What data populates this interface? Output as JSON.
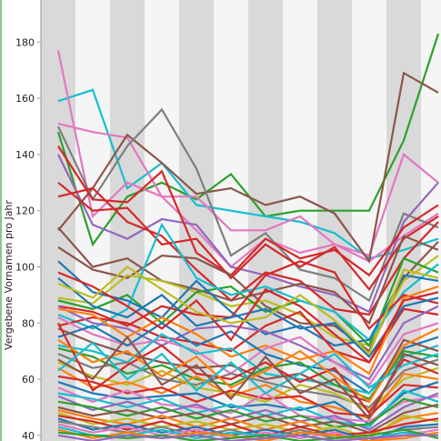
{
  "chart_data": {
    "type": "line",
    "title": "",
    "xlabel": "",
    "ylabel": "Vergebene Vornamen pro Jahr",
    "ylim": [
      38,
      195
    ],
    "y_ticks": [
      40,
      60,
      80,
      100,
      120,
      140,
      160,
      180
    ],
    "x": [
      0,
      1,
      2,
      3,
      4,
      5,
      6,
      7,
      8,
      9,
      10,
      11
    ],
    "grid": false,
    "legend": "none",
    "colors": {
      "stripe_dark": "#d9d9d9",
      "stripe_light": "#f5f5f5",
      "left_edge": "#8cc68c"
    },
    "series": [
      {
        "color": "#2ca02c",
        "values": [
          148,
          108,
          125,
          130,
          124,
          133,
          118,
          120,
          120,
          120,
          145,
          183
        ]
      },
      {
        "color": "#17becf",
        "values": [
          159,
          163,
          128,
          137,
          122,
          120,
          118,
          116,
          112,
          103,
          106,
          110
        ]
      },
      {
        "color": "#e377c2",
        "values": [
          177,
          118,
          130,
          125,
          125,
          113,
          113,
          118,
          108,
          104,
          140,
          130
        ]
      },
      {
        "color": "#e377c2",
        "values": [
          151,
          148,
          146,
          125,
          113,
          100,
          110,
          105,
          108,
          102,
          111,
          119
        ]
      },
      {
        "color": "#8c564b",
        "values": [
          113,
          128,
          147,
          137,
          126,
          128,
          122,
          125,
          119,
          102,
          169,
          162
        ]
      },
      {
        "color": "#7f7f7f",
        "values": [
          150,
          124,
          143,
          156,
          135,
          104,
          112,
          99,
          96,
          88,
          119,
          114
        ]
      },
      {
        "color": "#9467bd",
        "values": [
          140,
          115,
          110,
          117,
          115,
          100,
          97,
          93,
          90,
          84,
          116,
          130
        ]
      },
      {
        "color": "#d62728",
        "values": [
          143,
          124,
          123,
          134,
          105,
          97,
          110,
          103,
          106,
          97,
          114,
          122
        ]
      },
      {
        "color": "#d62728",
        "values": [
          130,
          120,
          121,
          108,
          110,
          96,
          108,
          100,
          107,
          92,
          110,
          118
        ]
      },
      {
        "color": "#d62728",
        "values": [
          125,
          128,
          116,
          111,
          99,
          88,
          98,
          95,
          85,
          83,
          103,
          116
        ]
      },
      {
        "color": "#8c564b",
        "values": [
          114,
          100,
          103,
          95,
          92,
          88,
          91,
          94,
          91,
          80,
          111,
          106
        ]
      },
      {
        "color": "#8c564b",
        "values": [
          107,
          99,
          96,
          104,
          103,
          97,
          86,
          80,
          79,
          70,
          96,
          109
        ]
      },
      {
        "color": "#bcbd22",
        "values": [
          89,
          87,
          97,
          95,
          91,
          86,
          88,
          83,
          75,
          72,
          95,
          104
        ]
      },
      {
        "color": "#2ca02c",
        "values": [
          88,
          85,
          90,
          80,
          91,
          93,
          84,
          88,
          84,
          72,
          103,
          98
        ]
      },
      {
        "color": "#17becf",
        "values": [
          83,
          78,
          85,
          115,
          96,
          90,
          93,
          88,
          84,
          74,
          91,
          101
        ]
      },
      {
        "color": "#1f77b4",
        "values": [
          102,
          91,
          88,
          82,
          95,
          84,
          76,
          79,
          72,
          74,
          97,
          95
        ]
      },
      {
        "color": "#d62728",
        "values": [
          86,
          84,
          79,
          86,
          83,
          82,
          97,
          102,
          98,
          78,
          90,
          87
        ]
      },
      {
        "color": "#d62728",
        "values": [
          79,
          82,
          80,
          75,
          73,
          70,
          79,
          84,
          70,
          66,
          85,
          83
        ]
      },
      {
        "color": "#9467bd",
        "values": [
          86,
          80,
          78,
          72,
          78,
          79,
          77,
          72,
          66,
          60,
          80,
          86
        ]
      },
      {
        "color": "#ff7f0e",
        "values": [
          85,
          83,
          75,
          82,
          76,
          68,
          72,
          67,
          70,
          62,
          89,
          93
        ]
      },
      {
        "color": "#e377c2",
        "values": [
          82,
          76,
          72,
          74,
          70,
          62,
          71,
          75,
          66,
          58,
          76,
          80
        ]
      },
      {
        "color": "#1f77b4",
        "values": [
          75,
          79,
          72,
          80,
          72,
          77,
          69,
          65,
          63,
          55,
          71,
          75
        ]
      },
      {
        "color": "#17becf",
        "values": [
          72,
          70,
          66,
          76,
          69,
          71,
          62,
          60,
          58,
          55,
          68,
          72
        ]
      },
      {
        "color": "#8c564b",
        "values": [
          78,
          73,
          69,
          66,
          64,
          65,
          60,
          62,
          56,
          52,
          74,
          70
        ]
      },
      {
        "color": "#2ca02c",
        "values": [
          71,
          68,
          62,
          65,
          60,
          58,
          64,
          66,
          58,
          53,
          70,
          68
        ]
      },
      {
        "color": "#7f7f7f",
        "values": [
          69,
          64,
          66,
          60,
          58,
          62,
          59,
          56,
          54,
          50,
          63,
          67
        ]
      },
      {
        "color": "#bcbd22",
        "values": [
          66,
          61,
          58,
          63,
          57,
          55,
          52,
          58,
          55,
          49,
          60,
          64
        ]
      },
      {
        "color": "#ff7f0e",
        "values": [
          64,
          57,
          59,
          55,
          61,
          54,
          58,
          52,
          50,
          46,
          62,
          60
        ]
      },
      {
        "color": "#d62728",
        "values": [
          61,
          59,
          55,
          57,
          52,
          56,
          53,
          54,
          48,
          47,
          58,
          57
        ]
      },
      {
        "color": "#1f77b4",
        "values": [
          59,
          55,
          53,
          54,
          55,
          50,
          51,
          49,
          52,
          44,
          55,
          59
        ]
      },
      {
        "color": "#e377c2",
        "values": [
          57,
          52,
          56,
          51,
          50,
          48,
          55,
          47,
          46,
          45,
          52,
          54
        ]
      },
      {
        "color": "#17becf",
        "values": [
          55,
          53,
          50,
          53,
          48,
          51,
          47,
          50,
          45,
          43,
          56,
          52
        ]
      },
      {
        "color": "#9467bd",
        "values": [
          54,
          49,
          52,
          48,
          51,
          46,
          49,
          45,
          47,
          42,
          50,
          55
        ]
      },
      {
        "color": "#2ca02c",
        "values": [
          52,
          50,
          47,
          50,
          46,
          49,
          45,
          47,
          43,
          44,
          53,
          50
        ]
      },
      {
        "color": "#8c564b",
        "values": [
          50,
          47,
          49,
          46,
          48,
          44,
          47,
          43,
          45,
          41,
          48,
          51
        ]
      },
      {
        "color": "#ff7f0e",
        "values": [
          49,
          46,
          44,
          47,
          43,
          46,
          42,
          45,
          41,
          40,
          46,
          48
        ]
      },
      {
        "color": "#bcbd22",
        "values": [
          48,
          44,
          46,
          43,
          45,
          42,
          44,
          41,
          43,
          39,
          47,
          45
        ]
      },
      {
        "color": "#d62728",
        "values": [
          47,
          45,
          42,
          45,
          41,
          44,
          40,
          43,
          40,
          41,
          44,
          46
        ]
      },
      {
        "color": "#1f77b4",
        "values": [
          46,
          42,
          44,
          41,
          43,
          40,
          42,
          40,
          42,
          38,
          43,
          44
        ]
      },
      {
        "color": "#7f7f7f",
        "values": [
          45,
          43,
          41,
          43,
          40,
          42,
          39,
          42,
          39,
          40,
          42,
          43
        ]
      },
      {
        "color": "#e377c2",
        "values": [
          44,
          41,
          43,
          40,
          42,
          39,
          41,
          39,
          41,
          38,
          40,
          42
        ]
      },
      {
        "color": "#17becf",
        "values": [
          43,
          40,
          40,
          42,
          39,
          41,
          40,
          40,
          38,
          39,
          41,
          40
        ]
      },
      {
        "color": "#ff7f0e",
        "values": [
          42,
          39,
          41,
          39,
          41,
          40,
          38,
          41,
          40,
          38,
          39,
          41
        ]
      },
      {
        "color": "#2ca02c",
        "values": [
          41,
          40,
          39,
          40,
          38,
          39,
          40,
          38,
          39,
          40,
          42,
          39
        ]
      },
      {
        "color": "#9467bd",
        "values": [
          40,
          38,
          40,
          39,
          40,
          38,
          39,
          40,
          38,
          39,
          40,
          40
        ]
      },
      {
        "color": "#d62728",
        "values": [
          80,
          56,
          65,
          72,
          62,
          60,
          66,
          59,
          64,
          48,
          67,
          62
        ]
      },
      {
        "color": "#ff7f0e",
        "values": [
          74,
          66,
          70,
          61,
          68,
          57,
          63,
          70,
          61,
          52,
          72,
          78
        ]
      },
      {
        "color": "#17becf",
        "values": [
          63,
          73,
          60,
          69,
          56,
          66,
          55,
          62,
          69,
          57,
          65,
          69
        ]
      },
      {
        "color": "#8c564b",
        "values": [
          67,
          60,
          75,
          58,
          65,
          53,
          68,
          55,
          60,
          46,
          69,
          65
        ]
      },
      {
        "color": "#1f77b4",
        "values": [
          96,
          86,
          82,
          90,
          79,
          82,
          85,
          78,
          80,
          68,
          86,
          89
        ]
      },
      {
        "color": "#d62728",
        "values": [
          98,
          93,
          86,
          78,
          88,
          74,
          92,
          86,
          76,
          66,
          88,
          91
        ]
      },
      {
        "color": "#bcbd22",
        "values": [
          94,
          89,
          100,
          92,
          84,
          80,
          82,
          90,
          81,
          69,
          99,
          96
        ]
      }
    ]
  }
}
